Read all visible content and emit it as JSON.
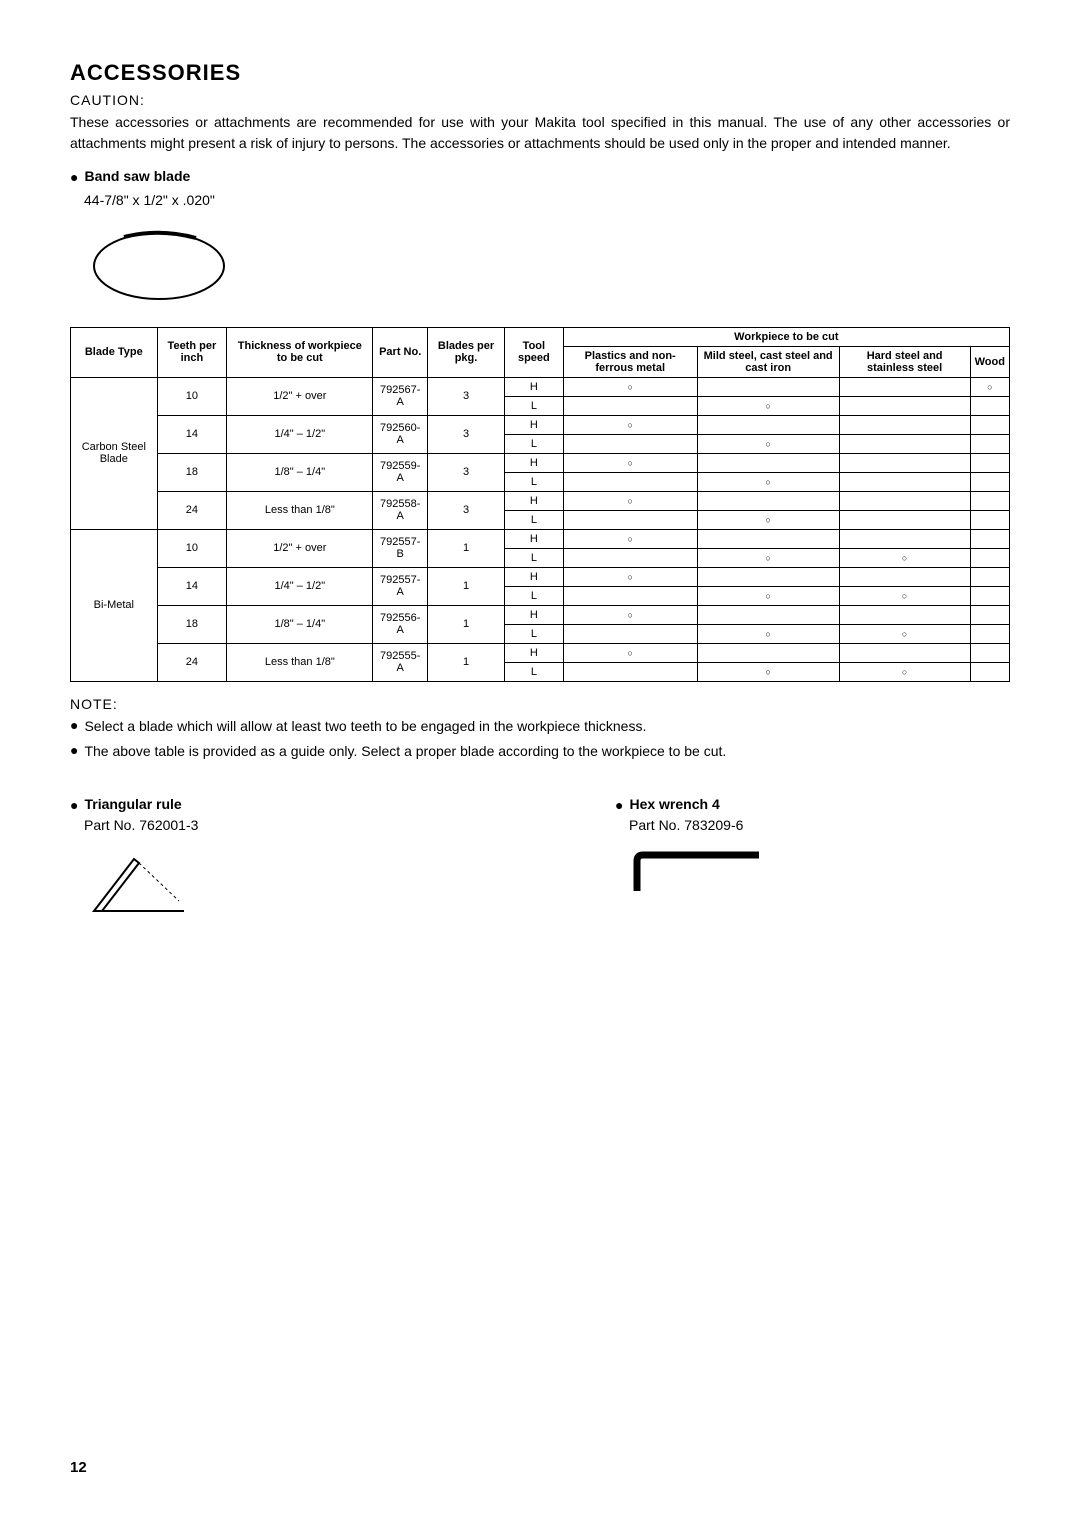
{
  "title": "ACCESSORIES",
  "caution_label": "CAUTION:",
  "caution_text": "These accessories or attachments are recommended for use with your Makita tool specified in this manual. The use of any other accessories or attachments might present a risk of injury to persons. The accessories or attachments should be used only in the proper and intended manner.",
  "blade_heading": "Band saw blade",
  "blade_dim": "44-7/8\" x 1/2\" x .020\"",
  "table": {
    "head": {
      "blade_type": "Blade Type",
      "tpi": "Teeth per inch",
      "thickness": "Thickness of workpiece to be cut",
      "partno": "Part No.",
      "blades_pkg": "Blades per pkg.",
      "speed": "Tool speed",
      "wp_header": "Workpiece to be cut",
      "plastics": "Plastics and non-ferrous metal",
      "mild": "Mild steel, cast steel and cast iron",
      "hard": "Hard steel and stainless steel",
      "wood": "Wood"
    },
    "blade_types": [
      "Carbon Steel Blade",
      "Bi-Metal"
    ],
    "rows": [
      {
        "bt": 0,
        "tpi": "10",
        "thick": "1/2\" + over",
        "pn": "792567-A",
        "pkg": "3",
        "H": {
          "plastics": "○",
          "mild": "",
          "hard": "",
          "wood": "○"
        },
        "L": {
          "plastics": "",
          "mild": "○",
          "hard": "",
          "wood": ""
        }
      },
      {
        "bt": 0,
        "tpi": "14",
        "thick": "1/4\" – 1/2\"",
        "pn": "792560-A",
        "pkg": "3",
        "H": {
          "plastics": "○",
          "mild": "",
          "hard": "",
          "wood": ""
        },
        "L": {
          "plastics": "",
          "mild": "○",
          "hard": "",
          "wood": ""
        }
      },
      {
        "bt": 0,
        "tpi": "18",
        "thick": "1/8\" – 1/4\"",
        "pn": "792559-A",
        "pkg": "3",
        "H": {
          "plastics": "○",
          "mild": "",
          "hard": "",
          "wood": ""
        },
        "L": {
          "plastics": "",
          "mild": "○",
          "hard": "",
          "wood": ""
        }
      },
      {
        "bt": 0,
        "tpi": "24",
        "thick": "Less than 1/8\"",
        "pn": "792558-A",
        "pkg": "3",
        "H": {
          "plastics": "○",
          "mild": "",
          "hard": "",
          "wood": ""
        },
        "L": {
          "plastics": "",
          "mild": "○",
          "hard": "",
          "wood": ""
        }
      },
      {
        "bt": 1,
        "tpi": "10",
        "thick": "1/2\" + over",
        "pn": "792557-B",
        "pkg": "1",
        "H": {
          "plastics": "○",
          "mild": "",
          "hard": "",
          "wood": ""
        },
        "L": {
          "plastics": "",
          "mild": "○",
          "hard": "○",
          "wood": ""
        }
      },
      {
        "bt": 1,
        "tpi": "14",
        "thick": "1/4\" – 1/2\"",
        "pn": "792557-A",
        "pkg": "1",
        "H": {
          "plastics": "○",
          "mild": "",
          "hard": "",
          "wood": ""
        },
        "L": {
          "plastics": "",
          "mild": "○",
          "hard": "○",
          "wood": ""
        }
      },
      {
        "bt": 1,
        "tpi": "18",
        "thick": "1/8\" – 1/4\"",
        "pn": "792556-A",
        "pkg": "1",
        "H": {
          "plastics": "○",
          "mild": "",
          "hard": "",
          "wood": ""
        },
        "L": {
          "plastics": "",
          "mild": "○",
          "hard": "○",
          "wood": ""
        }
      },
      {
        "bt": 1,
        "tpi": "24",
        "thick": "Less than 1/8\"",
        "pn": "792555-A",
        "pkg": "1",
        "H": {
          "plastics": "○",
          "mild": "",
          "hard": "",
          "wood": ""
        },
        "L": {
          "plastics": "",
          "mild": "○",
          "hard": "○",
          "wood": ""
        }
      }
    ],
    "speed_H": "H",
    "speed_L": "L"
  },
  "note_label": "NOTE:",
  "notes": [
    "Select a blade which will allow at least two teeth to be engaged in the workpiece thickness.",
    "The above table is provided as a guide only. Select a proper blade according to the workpiece to be cut."
  ],
  "accessories": [
    {
      "name": "Triangular rule",
      "partno": "Part No. 762001-3"
    },
    {
      "name": "Hex wrench 4",
      "partno": "Part No. 783209-6"
    }
  ],
  "page_number": "12"
}
